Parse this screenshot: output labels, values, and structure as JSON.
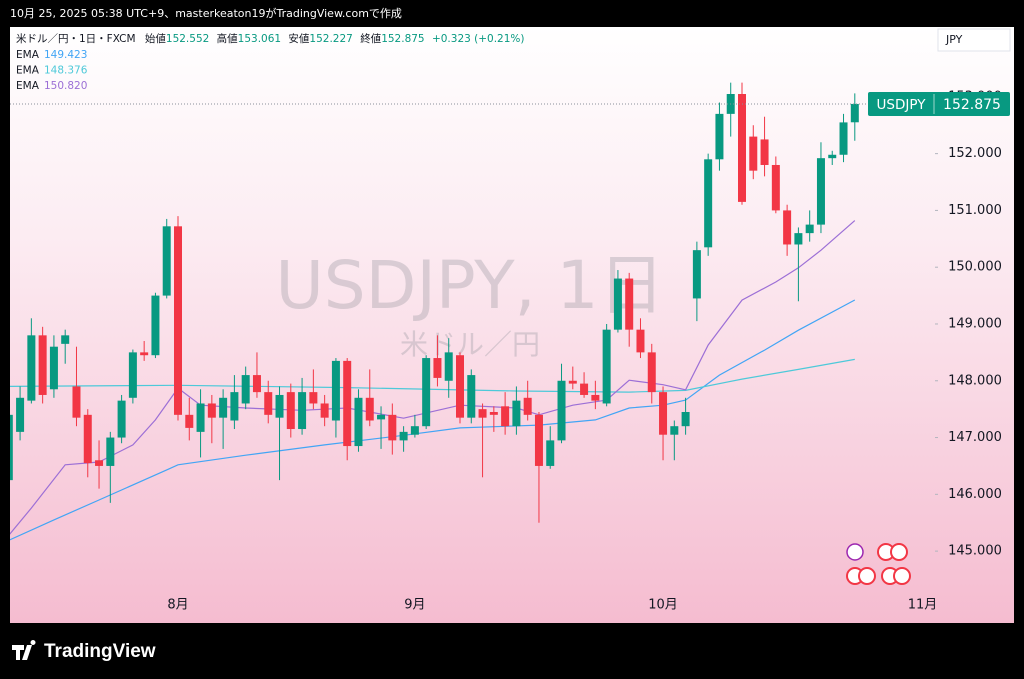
{
  "caption": "10月 25, 2025 05:38 UTC+9、masterkeaton19がTradingView.comで作成",
  "footer_logo": "TradingView",
  "chart_data": {
    "type": "candlestick",
    "title": "USDJPY, 1日",
    "subtitle": "米ドル／円",
    "legend_symbol": "米ドル／円・1日・FXCM",
    "ohlc_labels": [
      "始値",
      "高値",
      "安値",
      "終値"
    ],
    "change": "+0.323 (+0.21%)",
    "currency": "JPY",
    "price_tag_symbol": "USDJPY",
    "up_color": "#089981",
    "down_color": "#f23645",
    "categories": [
      null,
      null,
      null,
      null,
      null,
      null,
      null,
      null,
      null,
      null,
      null,
      null,
      null,
      null,
      null,
      "8月",
      null,
      null,
      null,
      null,
      null,
      null,
      null,
      null,
      null,
      null,
      null,
      null,
      null,
      null,
      null,
      null,
      null,
      null,
      null,
      null,
      "9月",
      null,
      null,
      null,
      null,
      null,
      null,
      null,
      null,
      null,
      null,
      null,
      null,
      null,
      null,
      null,
      null,
      null,
      null,
      null,
      null,
      null,
      "10月",
      null,
      null,
      null,
      null,
      null,
      null,
      null,
      null,
      null,
      null,
      null,
      null,
      null,
      null,
      null,
      null,
      null,
      null,
      null,
      null,
      null,
      null,
      "11月"
    ],
    "open": [
      146.25,
      147.1,
      147.65,
      148.8,
      147.85,
      148.65,
      147.9,
      147.4,
      146.6,
      146.5,
      147.0,
      147.7,
      148.5,
      148.45,
      149.5,
      150.72,
      147.4,
      147.1,
      147.6,
      147.35,
      147.3,
      147.6,
      148.1,
      147.8,
      147.35,
      147.8,
      147.15,
      147.8,
      147.6,
      147.3,
      148.35,
      146.85,
      147.7,
      147.32,
      147.4,
      146.95,
      147.05,
      147.2,
      148.4,
      148.0,
      148.45,
      147.35,
      147.5,
      147.45,
      147.55,
      147.2,
      147.7,
      147.4,
      146.5,
      146.95,
      148.0,
      147.95,
      147.75,
      147.6,
      148.9,
      149.8,
      148.9,
      148.5,
      147.8,
      147.05,
      147.2,
      149.45,
      150.35,
      151.9,
      152.7,
      153.05,
      152.3,
      152.25,
      151.8,
      151.0,
      150.4,
      150.6,
      150.75,
      151.92,
      151.98,
      152.552,
      null,
      null,
      null,
      null,
      null,
      null
    ],
    "high": [
      147.5,
      147.9,
      149.1,
      148.95,
      148.8,
      148.9,
      148.6,
      147.5,
      146.95,
      147.1,
      147.75,
      148.55,
      148.7,
      149.55,
      150.85,
      150.9,
      147.7,
      147.85,
      147.75,
      147.85,
      148.1,
      148.25,
      148.5,
      148.0,
      147.9,
      147.95,
      148.05,
      148.2,
      147.75,
      148.4,
      148.4,
      147.85,
      148.2,
      147.55,
      147.6,
      147.2,
      147.4,
      148.45,
      148.8,
      148.75,
      148.5,
      148.2,
      147.6,
      147.55,
      147.8,
      147.9,
      148.0,
      147.45,
      147.2,
      148.3,
      148.25,
      148.15,
      148.0,
      149.0,
      149.95,
      149.9,
      149.1,
      148.65,
      147.9,
      147.3,
      147.7,
      150.45,
      152.0,
      152.9,
      153.25,
      153.25,
      152.5,
      152.65,
      151.95,
      151.1,
      150.7,
      151.0,
      152.2,
      152.05,
      152.7,
      153.061,
      null,
      null,
      null,
      null,
      null,
      null
    ],
    "low": [
      146.2,
      146.95,
      147.6,
      147.6,
      147.7,
      148.3,
      147.2,
      146.3,
      146.1,
      145.85,
      146.9,
      147.6,
      148.35,
      148.4,
      149.45,
      147.3,
      146.95,
      146.65,
      146.9,
      146.8,
      147.15,
      147.5,
      147.7,
      147.25,
      146.25,
      147.0,
      147.05,
      147.5,
      147.2,
      147.0,
      146.6,
      146.75,
      147.2,
      146.8,
      146.7,
      146.75,
      147.0,
      147.15,
      147.9,
      147.7,
      147.25,
      147.25,
      146.3,
      147.1,
      147.05,
      147.05,
      147.3,
      145.5,
      146.45,
      146.9,
      147.85,
      147.7,
      147.5,
      147.55,
      148.85,
      148.6,
      148.4,
      147.6,
      146.6,
      146.6,
      147.05,
      149.05,
      150.2,
      151.7,
      152.3,
      151.1,
      151.55,
      151.6,
      150.95,
      150.2,
      149.4,
      150.45,
      150.6,
      151.8,
      151.85,
      152.227,
      null,
      null,
      null,
      null,
      null,
      null
    ],
    "close": [
      147.4,
      147.7,
      148.8,
      147.75,
      148.6,
      148.8,
      147.35,
      146.55,
      146.5,
      147.0,
      147.65,
      148.5,
      148.45,
      149.5,
      150.72,
      147.4,
      147.17,
      147.6,
      147.35,
      147.7,
      147.8,
      148.1,
      147.8,
      147.4,
      147.75,
      147.15,
      147.8,
      147.6,
      147.35,
      148.35,
      146.85,
      147.7,
      147.3,
      147.4,
      146.95,
      147.1,
      147.2,
      148.4,
      148.05,
      148.5,
      147.35,
      148.1,
      147.35,
      147.4,
      147.2,
      147.65,
      147.4,
      146.5,
      146.95,
      148.0,
      147.95,
      147.75,
      147.65,
      148.9,
      149.8,
      148.9,
      148.5,
      147.8,
      147.05,
      147.2,
      147.45,
      150.3,
      151.9,
      152.7,
      153.05,
      151.15,
      151.7,
      151.8,
      151.0,
      150.4,
      150.6,
      150.75,
      151.92,
      151.98,
      152.55,
      152.875,
      null,
      null,
      null,
      null,
      null,
      null
    ],
    "ema": [
      {
        "name": "EMA",
        "color": "#42a5f5",
        "last_value_label": "149.423",
        "x": [
          0,
          4,
          8,
          14,
          15,
          21,
          28,
          35,
          40,
          47,
          52,
          55,
          58,
          60,
          63,
          67,
          70,
          75
        ],
        "values": [
          145.19,
          145.55,
          145.9,
          146.43,
          146.52,
          146.69,
          146.87,
          147.04,
          147.17,
          147.22,
          147.31,
          147.52,
          147.57,
          147.66,
          148.1,
          148.54,
          148.89,
          149.423
        ]
      },
      {
        "name": "EMA",
        "color": "#4dc9d9",
        "last_value_label": "148.376",
        "x": [
          0,
          15,
          30,
          45,
          55,
          60,
          65,
          70,
          75
        ],
        "values": [
          147.9,
          147.92,
          147.88,
          147.82,
          147.8,
          147.83,
          148.03,
          148.2,
          148.376
        ]
      },
      {
        "name": "EMA",
        "color": "#9c6fd6",
        "last_value_label": "150.820",
        "x": [
          0,
          2,
          5,
          8,
          11,
          13,
          15,
          17,
          21,
          26,
          30,
          35,
          40,
          45,
          47,
          50,
          53,
          55,
          58,
          60,
          62,
          65,
          68,
          70,
          72,
          75
        ],
        "values": [
          145.28,
          145.76,
          146.52,
          146.57,
          146.87,
          147.31,
          147.87,
          147.57,
          147.52,
          147.48,
          147.52,
          147.34,
          147.57,
          147.52,
          147.4,
          147.57,
          147.66,
          148.01,
          147.93,
          147.84,
          148.63,
          149.42,
          149.74,
          149.99,
          150.3,
          150.82
        ]
      }
    ],
    "ylim": [
      144.28,
      154.23
    ],
    "yticks": [
      {
        "value": 145,
        "label": "145.000"
      },
      {
        "value": 146,
        "label": "146.000"
      },
      {
        "value": 147,
        "label": "147.000"
      },
      {
        "value": 148,
        "label": "148.000"
      },
      {
        "value": 149,
        "label": "149.000"
      },
      {
        "value": 150,
        "label": "150.000"
      },
      {
        "value": 151,
        "label": "151.000"
      },
      {
        "value": 152,
        "label": "152.000"
      },
      {
        "value": 153,
        "label": "153.000"
      }
    ]
  }
}
